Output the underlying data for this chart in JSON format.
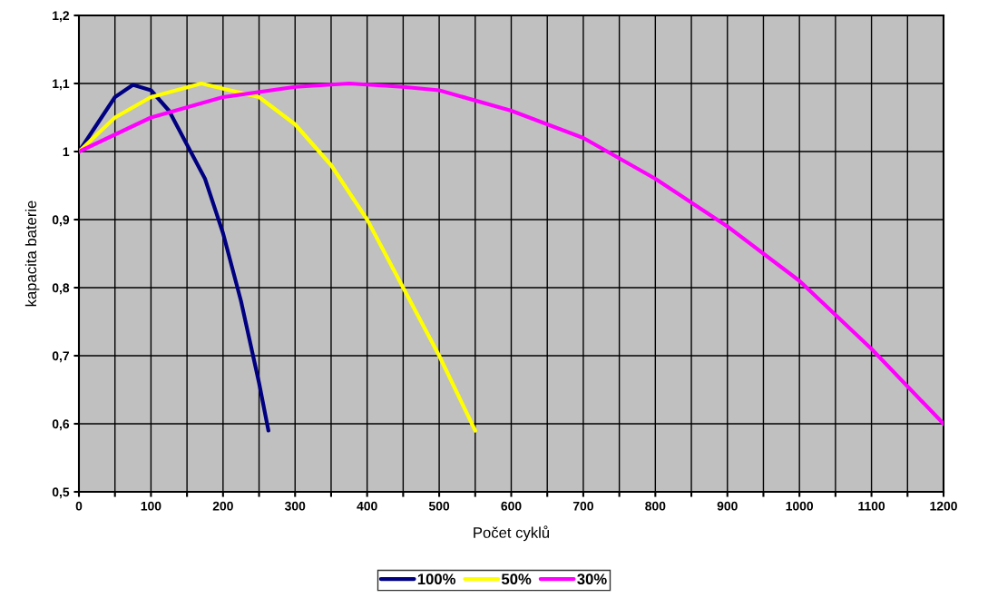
{
  "chart_data": {
    "type": "line",
    "xlabel": "Počet cyklů",
    "ylabel": "kapacita baterie",
    "xlim": [
      0,
      1200
    ],
    "ylim": [
      0.5,
      1.2
    ],
    "xticks": [
      0,
      {
        "value": 50,
        "label": null
      },
      100,
      {
        "value": 150,
        "label": null
      },
      200,
      {
        "value": 250,
        "label": null
      },
      300,
      {
        "value": 350,
        "label": null
      },
      400,
      {
        "value": 450,
        "label": null
      },
      500,
      {
        "value": 550,
        "label": null
      },
      600,
      {
        "value": 650,
        "label": null
      },
      700,
      {
        "value": 750,
        "label": null
      },
      800,
      {
        "value": 850,
        "label": null
      },
      900,
      {
        "value": 950,
        "label": null
      },
      1000,
      {
        "value": 1050,
        "label": null
      },
      1100,
      {
        "value": 1150,
        "label": null
      },
      1200
    ],
    "yticks": [
      {
        "value": 0.5,
        "label": "0,5"
      },
      {
        "value": 0.6,
        "label": "0,6"
      },
      {
        "value": 0.7,
        "label": "0,7"
      },
      {
        "value": 0.8,
        "label": "0,8"
      },
      {
        "value": 0.9,
        "label": "0,9"
      },
      {
        "value": 1,
        "label": "1"
      },
      {
        "value": 1.1,
        "label": "1,1"
      },
      {
        "value": 1.2,
        "label": "1,2"
      }
    ],
    "grid": true,
    "legend": "bottom",
    "marker": "none",
    "line_style": "solid",
    "series": [
      {
        "name": "100%",
        "color": "#000080",
        "x": [
          0,
          25,
          50,
          75,
          100,
          125,
          150,
          175,
          200,
          225,
          250,
          263
        ],
        "values": [
          1.0,
          1.04,
          1.08,
          1.098,
          1.09,
          1.06,
          1.01,
          0.96,
          0.88,
          0.78,
          0.66,
          0.59
        ]
      },
      {
        "name": "50%",
        "color": "#ffff00",
        "x": [
          0,
          50,
          100,
          170,
          250,
          300,
          350,
          400,
          450,
          500,
          550
        ],
        "values": [
          1.0,
          1.05,
          1.08,
          1.1,
          1.08,
          1.04,
          0.98,
          0.9,
          0.8,
          0.7,
          0.59
        ]
      },
      {
        "name": "30%",
        "color": "#ff00ff",
        "x": [
          0,
          100,
          200,
          300,
          375,
          450,
          500,
          600,
          700,
          800,
          900,
          1000,
          1100,
          1200
        ],
        "values": [
          1.0,
          1.05,
          1.08,
          1.095,
          1.1,
          1.095,
          1.09,
          1.06,
          1.02,
          0.96,
          0.89,
          0.81,
          0.71,
          0.6
        ]
      }
    ]
  }
}
